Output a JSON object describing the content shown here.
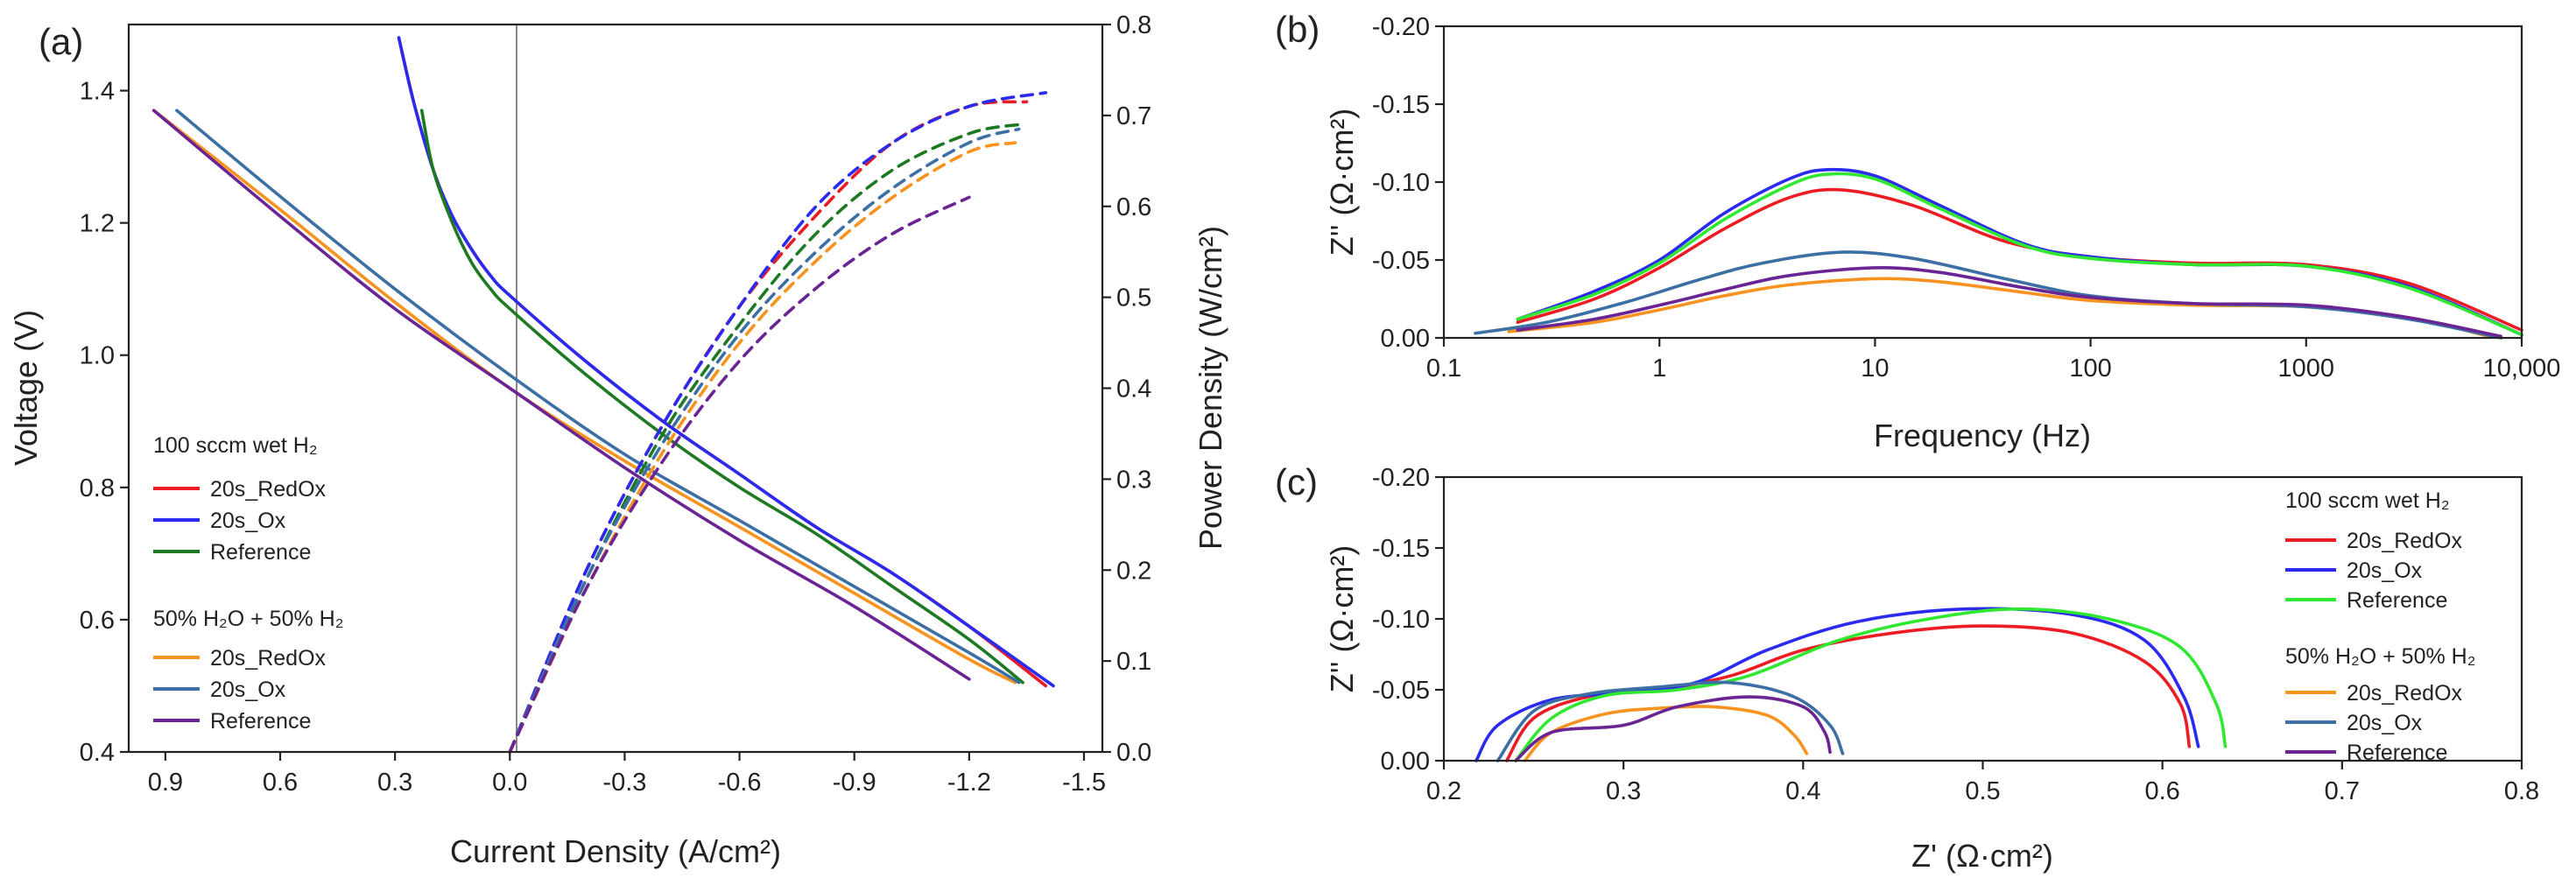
{
  "colors": {
    "red": "#ec1c24",
    "blue": "#2b2bf0",
    "green": "#1e7a22",
    "lime": "#2fe82f",
    "orange": "#f7931e",
    "steel": "#3c6fa3",
    "purple": "#6a2494",
    "zero_line": "#888888"
  },
  "chart_data": [
    {
      "panel": "(a)",
      "type": "line",
      "xlabel": "Current Density (A/cm²)",
      "ylabel": "Voltage (V)",
      "y2label": "Power Density (W/cm²)",
      "xlim": [
        0.95,
        -1.5
      ],
      "ylim": [
        0.4,
        1.5
      ],
      "y2lim": [
        0.0,
        0.8
      ],
      "xticks": [
        "0.9",
        "0.6",
        "0.3",
        "0.0",
        "-0.3",
        "-0.6",
        "-0.9",
        "-1.2",
        "-1.5"
      ],
      "yticks": [
        "0.4",
        "0.6",
        "0.8",
        "1.0",
        "1.2",
        "1.4"
      ],
      "y2ticks": [
        "0.0",
        "0.1",
        "0.2",
        "0.3",
        "0.4",
        "0.5",
        "0.6",
        "0.7",
        "0.8"
      ],
      "legend": {
        "group1_title": "100 sccm wet H₂",
        "group2_title": "50% H₂O + 50% H₂",
        "entries": [
          "20s_RedOx",
          "20s_Ox",
          "Reference",
          "20s_RedOx",
          "20s_Ox",
          "Reference"
        ]
      },
      "voltage_series": [
        {
          "name": "20s_RedOx (100 sccm wet H₂)",
          "color": "red",
          "x": [
            0.29,
            0.25,
            0.2,
            0.15,
            0.1,
            0.05,
            0.0,
            -0.2,
            -0.4,
            -0.6,
            -0.8,
            -1.0,
            -1.2,
            -1.4
          ],
          "y": [
            1.48,
            1.38,
            1.28,
            1.21,
            1.16,
            1.12,
            1.09,
            0.99,
            0.9,
            0.82,
            0.74,
            0.67,
            0.59,
            0.5
          ]
        },
        {
          "name": "20s_Ox (100 sccm wet H₂)",
          "color": "blue",
          "x": [
            0.29,
            0.25,
            0.2,
            0.15,
            0.1,
            0.05,
            0.0,
            -0.2,
            -0.4,
            -0.6,
            -0.8,
            -1.0,
            -1.2,
            -1.42
          ],
          "y": [
            1.48,
            1.38,
            1.28,
            1.21,
            1.16,
            1.12,
            1.09,
            0.99,
            0.9,
            0.82,
            0.74,
            0.67,
            0.59,
            0.5
          ]
        },
        {
          "name": "Reference (100 sccm wet H₂)",
          "color": "green",
          "x": [
            0.23,
            0.2,
            0.15,
            0.1,
            0.05,
            0.0,
            -0.2,
            -0.4,
            -0.6,
            -0.8,
            -1.0,
            -1.2,
            -1.34
          ],
          "y": [
            1.37,
            1.28,
            1.2,
            1.14,
            1.1,
            1.07,
            0.97,
            0.88,
            0.8,
            0.73,
            0.65,
            0.57,
            0.505
          ]
        },
        {
          "name": "20s_RedOx (50% H₂O + 50% H₂)",
          "color": "orange",
          "x": [
            0.93,
            0.6,
            0.3,
            0.0,
            -0.3,
            -0.6,
            -0.9,
            -1.2,
            -1.32
          ],
          "y": [
            1.37,
            1.22,
            1.08,
            0.95,
            0.84,
            0.74,
            0.64,
            0.54,
            0.505
          ]
        },
        {
          "name": "20s_Ox (50% H₂O + 50% H₂)",
          "color": "steel",
          "x": [
            0.87,
            0.6,
            0.3,
            0.0,
            -0.3,
            -0.6,
            -0.9,
            -1.2,
            -1.33
          ],
          "y": [
            1.37,
            1.24,
            1.1,
            0.97,
            0.85,
            0.75,
            0.65,
            0.55,
            0.505
          ]
        },
        {
          "name": "Reference (50% H₂O + 50% H₂)",
          "color": "purple",
          "x": [
            0.93,
            0.6,
            0.3,
            0.0,
            -0.3,
            -0.6,
            -0.9,
            -1.2
          ],
          "y": [
            1.37,
            1.21,
            1.07,
            0.95,
            0.83,
            0.72,
            0.62,
            0.51
          ]
        }
      ],
      "power_series": [
        {
          "name": "20s_RedOx (100 sccm wet H₂)",
          "color": "red",
          "x": [
            0.0,
            -0.2,
            -0.4,
            -0.6,
            -0.8,
            -1.0,
            -1.2,
            -1.35
          ],
          "y": [
            0.0,
            0.2,
            0.36,
            0.49,
            0.59,
            0.67,
            0.71,
            0.715
          ]
        },
        {
          "name": "20s_Ox (100 sccm wet H₂)",
          "color": "blue",
          "x": [
            0.0,
            -0.2,
            -0.4,
            -0.6,
            -0.8,
            -1.0,
            -1.2,
            -1.4
          ],
          "y": [
            0.0,
            0.2,
            0.36,
            0.49,
            0.6,
            0.67,
            0.71,
            0.725
          ]
        },
        {
          "name": "Reference (100 sccm wet H₂)",
          "color": "green",
          "x": [
            0.0,
            -0.2,
            -0.4,
            -0.6,
            -0.8,
            -1.0,
            -1.2,
            -1.33
          ],
          "y": [
            0.0,
            0.19,
            0.35,
            0.47,
            0.57,
            0.64,
            0.68,
            0.69
          ]
        },
        {
          "name": "20s_RedOx (50% H₂O + 50% H₂)",
          "color": "orange",
          "x": [
            0.0,
            -0.2,
            -0.4,
            -0.6,
            -0.8,
            -1.0,
            -1.2,
            -1.32
          ],
          "y": [
            0.0,
            0.18,
            0.33,
            0.45,
            0.54,
            0.61,
            0.66,
            0.67
          ]
        },
        {
          "name": "20s_Ox (50% H₂O + 50% H₂)",
          "color": "steel",
          "x": [
            0.0,
            -0.2,
            -0.4,
            -0.6,
            -0.8,
            -1.0,
            -1.2,
            -1.33
          ],
          "y": [
            0.0,
            0.19,
            0.34,
            0.46,
            0.55,
            0.62,
            0.67,
            0.685
          ]
        },
        {
          "name": "Reference (50% H₂O + 50% H₂)",
          "color": "purple",
          "x": [
            0.0,
            -0.2,
            -0.4,
            -0.6,
            -0.8,
            -1.0,
            -1.2
          ],
          "y": [
            0.0,
            0.18,
            0.32,
            0.43,
            0.51,
            0.57,
            0.61
          ]
        }
      ]
    },
    {
      "panel": "(b)",
      "type": "line",
      "xscale": "log",
      "xlabel": "Frequency (Hz)",
      "ylabel": "Z'' (Ω·cm²)",
      "xlim": [
        0.1,
        10000
      ],
      "ylim": [
        0.0,
        -0.2
      ],
      "xticks": [
        "0.1",
        "1",
        "10",
        "100",
        "1000",
        "10,000"
      ],
      "yticks": [
        "0.00",
        "-0.05",
        "-0.10",
        "-0.15",
        "-0.20"
      ],
      "series": [
        {
          "name": "20s_RedOx (100 sccm wet H₂)",
          "color": "red",
          "x": [
            0.22,
            0.5,
            1,
            2,
            4,
            7,
            15,
            40,
            100,
            300,
            1000,
            3000,
            10000
          ],
          "y": [
            -0.01,
            -0.025,
            -0.045,
            -0.07,
            -0.09,
            -0.095,
            -0.085,
            -0.062,
            -0.052,
            -0.048,
            -0.047,
            -0.035,
            -0.005
          ]
        },
        {
          "name": "20s_Ox (100 sccm wet H₂)",
          "color": "blue",
          "x": [
            0.22,
            0.5,
            1,
            2,
            4,
            6,
            10,
            20,
            50,
            100,
            300,
            1000,
            3000,
            10000
          ],
          "y": [
            -0.012,
            -0.03,
            -0.05,
            -0.08,
            -0.102,
            -0.108,
            -0.104,
            -0.085,
            -0.06,
            -0.052,
            -0.047,
            -0.046,
            -0.033,
            -0.002
          ]
        },
        {
          "name": "Reference (100 sccm wet H₂)",
          "color": "lime",
          "x": [
            0.22,
            0.5,
            1,
            2,
            4,
            6,
            10,
            20,
            50,
            100,
            300,
            1000,
            3000,
            10000
          ],
          "y": [
            -0.012,
            -0.028,
            -0.048,
            -0.076,
            -0.098,
            -0.105,
            -0.102,
            -0.083,
            -0.059,
            -0.051,
            -0.047,
            -0.046,
            -0.032,
            -0.002
          ]
        },
        {
          "name": "20s_RedOx (50% H₂O + 50% H₂)",
          "color": "orange",
          "x": [
            0.2,
            0.5,
            1,
            2,
            4,
            10,
            20,
            50,
            100,
            300,
            1000,
            3000,
            7000
          ],
          "y": [
            -0.004,
            -0.01,
            -0.018,
            -0.027,
            -0.034,
            -0.038,
            -0.036,
            -0.029,
            -0.024,
            -0.021,
            -0.02,
            -0.013,
            -0.001
          ]
        },
        {
          "name": "20s_Ox (50% H₂O + 50% H₂)",
          "color": "steel",
          "x": [
            0.14,
            0.3,
            0.7,
            1.5,
            3,
            7,
            15,
            40,
            100,
            300,
            1000,
            3000,
            8000
          ],
          "y": [
            -0.003,
            -0.01,
            -0.023,
            -0.037,
            -0.048,
            -0.055,
            -0.051,
            -0.038,
            -0.027,
            -0.022,
            -0.02,
            -0.012,
            0.0
          ]
        },
        {
          "name": "Reference (50% H₂O + 50% H₂)",
          "color": "purple",
          "x": [
            0.22,
            0.5,
            1,
            2,
            4,
            10,
            20,
            50,
            100,
            300,
            1000,
            3000,
            8000
          ],
          "y": [
            -0.005,
            -0.012,
            -0.021,
            -0.031,
            -0.04,
            -0.045,
            -0.042,
            -0.032,
            -0.026,
            -0.022,
            -0.021,
            -0.013,
            -0.001
          ]
        }
      ]
    },
    {
      "panel": "(c)",
      "type": "line",
      "xlabel": "Z' (Ω·cm²)",
      "ylabel": "Z'' (Ω·cm²)",
      "xlim": [
        0.2,
        0.8
      ],
      "ylim": [
        0.0,
        -0.2
      ],
      "xticks": [
        "0.2",
        "0.3",
        "0.4",
        "0.5",
        "0.6",
        "0.7",
        "0.8"
      ],
      "yticks": [
        "0.00",
        "-0.05",
        "-0.10",
        "-0.15",
        "-0.20"
      ],
      "legend": {
        "group1_title": "100 sccm wet H₂",
        "group2_title": "50% H₂O + 50% H₂",
        "entries": [
          "20s_RedOx",
          "20s_Ox",
          "Reference",
          "20s_RedOx",
          "20s_Ox",
          "Reference"
        ]
      },
      "series": [
        {
          "name": "20s_RedOx (100 sccm wet H₂)",
          "color": "red",
          "x": [
            0.235,
            0.25,
            0.28,
            0.32,
            0.36,
            0.4,
            0.45,
            0.5,
            0.55,
            0.59,
            0.61,
            0.615
          ],
          "y": [
            0.0,
            -0.03,
            -0.045,
            -0.05,
            -0.06,
            -0.078,
            -0.09,
            -0.095,
            -0.09,
            -0.07,
            -0.04,
            -0.01
          ]
        },
        {
          "name": "20s_Ox (100 sccm wet H₂)",
          "color": "blue",
          "x": [
            0.218,
            0.23,
            0.26,
            0.3,
            0.34,
            0.38,
            0.43,
            0.49,
            0.55,
            0.59,
            0.612,
            0.62
          ],
          "y": [
            0.0,
            -0.025,
            -0.043,
            -0.048,
            -0.055,
            -0.078,
            -0.098,
            -0.107,
            -0.103,
            -0.085,
            -0.045,
            -0.01
          ]
        },
        {
          "name": "Reference (100 sccm wet H₂)",
          "color": "lime",
          "x": [
            0.24,
            0.26,
            0.29,
            0.33,
            0.37,
            0.42,
            0.47,
            0.52,
            0.57,
            0.61,
            0.63,
            0.635
          ],
          "y": [
            0.0,
            -0.03,
            -0.046,
            -0.05,
            -0.06,
            -0.085,
            -0.1,
            -0.107,
            -0.1,
            -0.08,
            -0.04,
            -0.01
          ]
        },
        {
          "name": "20s_RedOx (50% H₂O + 50% H₂)",
          "color": "orange",
          "x": [
            0.245,
            0.26,
            0.29,
            0.32,
            0.35,
            0.38,
            0.395,
            0.402
          ],
          "y": [
            0.0,
            -0.02,
            -0.033,
            -0.037,
            -0.038,
            -0.032,
            -0.018,
            -0.005
          ]
        },
        {
          "name": "20s_Ox (50% H₂O + 50% H₂)",
          "color": "steel",
          "x": [
            0.23,
            0.25,
            0.28,
            0.32,
            0.36,
            0.395,
            0.415,
            0.422
          ],
          "y": [
            0.0,
            -0.035,
            -0.047,
            -0.052,
            -0.055,
            -0.045,
            -0.025,
            -0.005
          ]
        },
        {
          "name": "Reference (50% H₂O + 50% H₂)",
          "color": "purple",
          "x": [
            0.24,
            0.26,
            0.3,
            0.33,
            0.37,
            0.4,
            0.412,
            0.415
          ],
          "y": [
            0.0,
            -0.02,
            -0.025,
            -0.038,
            -0.045,
            -0.038,
            -0.02,
            -0.006
          ]
        }
      ]
    }
  ]
}
